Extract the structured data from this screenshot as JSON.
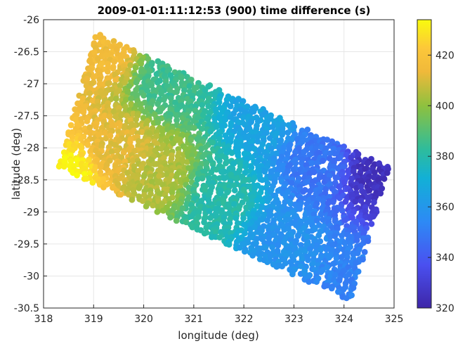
{
  "chart_data": {
    "type": "scatter",
    "title": "2009-01-01:11:12:53 (900) time difference (s)",
    "xlabel": "longitude (deg)",
    "ylabel": "latitude (deg)",
    "xlim": [
      318,
      325
    ],
    "ylim": [
      -30.5,
      -26
    ],
    "xticks": [
      "318",
      "319",
      "320",
      "321",
      "322",
      "323",
      "324",
      "325"
    ],
    "yticks": [
      "-26",
      "-26.5",
      "-27",
      "-27.5",
      "-28",
      "-28.5",
      "-29",
      "-29.5",
      "-30",
      "-30.5"
    ],
    "grid": true,
    "colormap": "parula",
    "colorbar": {
      "min": 320,
      "max": 434,
      "ticks": [
        "320",
        "340",
        "360",
        "380",
        "400",
        "420"
      ]
    },
    "swath_corners": [
      {
        "lon": 319.05,
        "lat": -26.2
      },
      {
        "lon": 324.9,
        "lat": -28.3
      },
      {
        "lon": 324.25,
        "lat": -30.45
      },
      {
        "lon": 318.3,
        "lat": -28.3
      }
    ],
    "value_field": {
      "description_points": [
        {
          "lon": 318.5,
          "lat": -28.45,
          "value": 432
        },
        {
          "lon": 319.2,
          "lat": -26.5,
          "value": 415
        },
        {
          "lon": 319.5,
          "lat": -28.0,
          "value": 412
        },
        {
          "lon": 320.3,
          "lat": -28.4,
          "value": 405
        },
        {
          "lon": 320.5,
          "lat": -27.0,
          "value": 385
        },
        {
          "lon": 321.5,
          "lat": -28.8,
          "value": 380
        },
        {
          "lon": 322.3,
          "lat": -27.5,
          "value": 365
        },
        {
          "lon": 322.8,
          "lat": -29.5,
          "value": 358
        },
        {
          "lon": 323.5,
          "lat": -28.3,
          "value": 348
        },
        {
          "lon": 324.6,
          "lat": -28.4,
          "value": 325
        },
        {
          "lon": 324.2,
          "lat": -30.2,
          "value": 352
        }
      ]
    }
  }
}
